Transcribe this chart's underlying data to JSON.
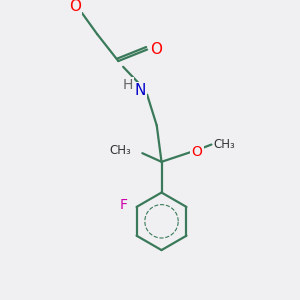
{
  "background_color": "#f0f0f2",
  "bond_color": "#3a7a5a",
  "atom_colors": {
    "O": "#ff0000",
    "N": "#0000cc",
    "F": "#cc00aa",
    "C": "#000000",
    "H": "#666666"
  },
  "font_size": 10,
  "line_width": 1.6,
  "figsize": [
    3.0,
    3.0
  ],
  "dpi": 100
}
